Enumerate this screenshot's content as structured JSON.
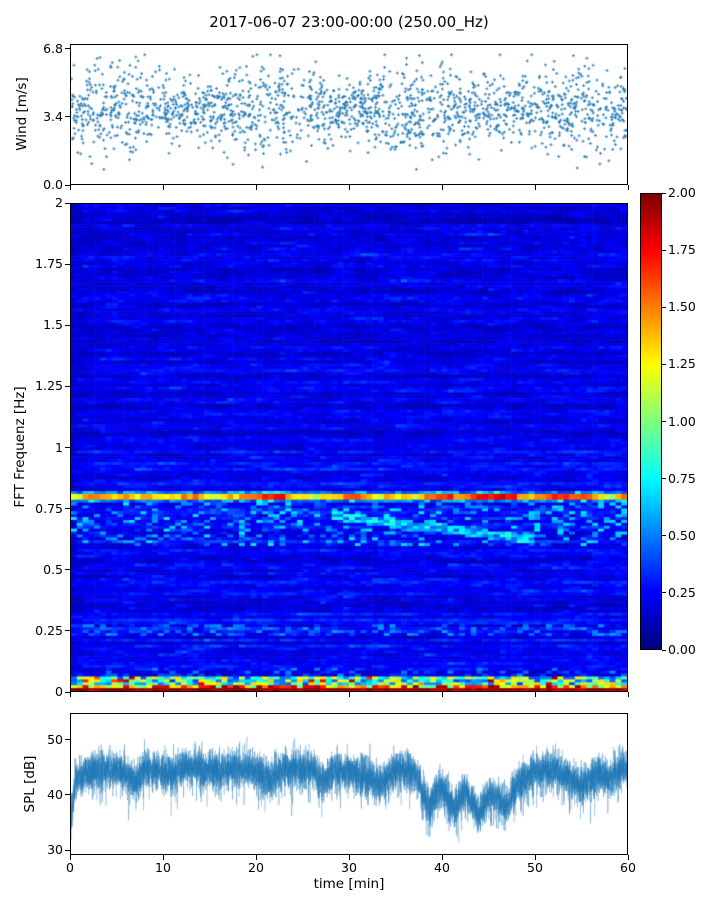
{
  "title": "2017-06-07 23:00-00:00 (250.00_Hz)",
  "colors": {
    "series_blue": "#1f77b4",
    "frame": "#000000",
    "background": "#ffffff",
    "colormap": "jet",
    "cbar_top": "#800000",
    "cbar_bottom": "#00008c"
  },
  "colorbar": {
    "tick_labels": [
      "2.00",
      "1.75",
      "1.50",
      "1.25",
      "1.00",
      "0.75",
      "0.50",
      "0.25",
      "0.00"
    ],
    "min": 0.0,
    "max": 2.0
  },
  "chart_data": [
    {
      "type": "scatter",
      "name": "wind-speed",
      "ylabel": "Wind [m/s]",
      "ytick_labels": [
        "6.8",
        "3.4",
        "0.0"
      ],
      "yticks": [
        6.8,
        3.4,
        0.0
      ],
      "ylim": [
        0,
        7.1
      ],
      "xlim": [
        0,
        60
      ],
      "marker": "+",
      "marker_color": "#1f77b4",
      "n_points": 1900,
      "mean": 3.8,
      "std": 1.02,
      "clip": [
        0.75,
        6.6
      ],
      "seed": 42
    },
    {
      "type": "heatmap",
      "name": "fft-spectrogram",
      "ylabel": "FFT Frequenz [Hz]",
      "ytick_labels": [
        "2",
        "1.75",
        "1.5",
        "1.25",
        "1",
        "0.75",
        "0.5",
        "0.25",
        "0"
      ],
      "yticks": [
        2,
        1.75,
        1.5,
        1.25,
        1,
        0.75,
        0.5,
        0.25,
        0
      ],
      "ylim": [
        0,
        2
      ],
      "xlim": [
        0,
        60
      ],
      "colormap": "jet",
      "clim": [
        0,
        2
      ],
      "grid_cols": 96,
      "grid_rows": 168,
      "seed": 7,
      "background_level": [
        0.07,
        0.4
      ],
      "bands": [
        {
          "freq": [
            0.772,
            0.82
          ],
          "level": [
            0.85,
            2.0
          ],
          "desc": "strong narrowband tonal line at ~0.8 Hz (yellow/orange/red segments)"
        },
        {
          "freq": [
            0.6,
            0.772
          ],
          "level": [
            0.28,
            0.85
          ],
          "desc": "patchy cyan activity below the main line"
        },
        {
          "freq_path": {
            "t": [
              28,
              50
            ],
            "f": [
              0.72,
              0.62
            ]
          },
          "level": [
            0.4,
            0.85
          ],
          "desc": "slowly descending ridge between 28 and 50 min"
        },
        {
          "freq": [
            0.23,
            0.272
          ],
          "level": [
            0.24,
            0.56
          ],
          "desc": "faint line near 0.25 Hz"
        },
        {
          "freq": [
            0.06,
            0.1
          ],
          "level": [
            0.25,
            0.55
          ],
          "desc": "weak activity just above the low band"
        },
        {
          "freq": [
            0.0,
            0.06
          ],
          "level": [
            0.35,
            2.0
          ],
          "desc": "strong broadband low-frequency band, bottom row saturated dark red"
        }
      ]
    },
    {
      "type": "line",
      "name": "spl",
      "ylabel": "SPL [dB]",
      "ytick_labels": [
        "50",
        "40",
        "30"
      ],
      "yticks": [
        50,
        40,
        30
      ],
      "ylim": [
        29.2,
        54.9
      ],
      "xlabel": "time [min]",
      "xtick_labels": [
        "0",
        "10",
        "20",
        "30",
        "40",
        "50",
        "60"
      ],
      "xticks": [
        0,
        10,
        20,
        30,
        40,
        50,
        60
      ],
      "xlim": [
        0,
        60
      ],
      "line_color": "#1f77b4",
      "noise_std": 1.65,
      "seed": 99,
      "keypoints": [
        [
          0,
          36
        ],
        [
          0.5,
          43
        ],
        [
          2,
          44.5
        ],
        [
          5,
          45
        ],
        [
          7,
          42.5
        ],
        [
          8,
          44.8
        ],
        [
          11,
          44
        ],
        [
          13,
          45.2
        ],
        [
          16,
          44.5
        ],
        [
          19,
          45
        ],
        [
          21.5,
          43
        ],
        [
          23,
          45
        ],
        [
          26,
          44.8
        ],
        [
          27,
          42.3
        ],
        [
          28.5,
          44.8
        ],
        [
          31,
          44.2
        ],
        [
          33.5,
          42
        ],
        [
          35,
          44.8
        ],
        [
          37,
          44.5
        ],
        [
          38.7,
          37.6
        ],
        [
          39.8,
          41.8
        ],
        [
          41.3,
          37.8
        ],
        [
          42.5,
          40.8
        ],
        [
          44,
          36.8
        ],
        [
          45.3,
          40.5
        ],
        [
          46.8,
          37.8
        ],
        [
          48.3,
          42
        ],
        [
          50,
          44.3
        ],
        [
          52,
          44.6
        ],
        [
          53.8,
          43.2
        ],
        [
          55.3,
          41.6
        ],
        [
          56.8,
          44
        ],
        [
          58,
          43
        ],
        [
          59,
          44.5
        ],
        [
          60,
          44.8
        ]
      ]
    }
  ]
}
